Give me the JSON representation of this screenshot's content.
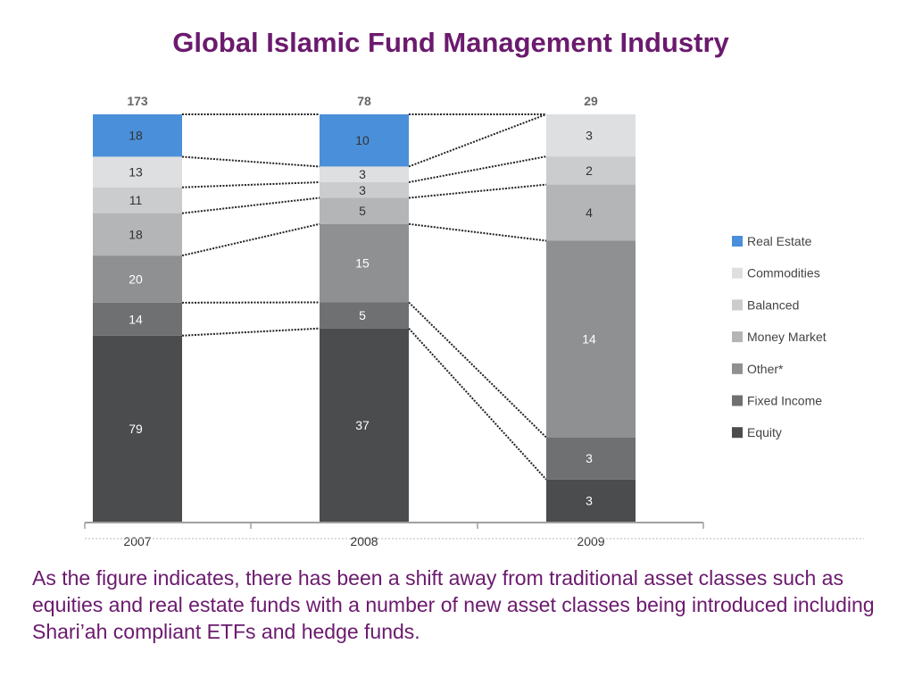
{
  "slide": {
    "title": "Global Islamic Fund Management Industry",
    "caption": "As the figure indicates, there has been a shift away from traditional asset classes such as equities and real estate funds with a number of new asset classes being introduced including Shari’ah compliant ETFs and hedge funds."
  },
  "chart_data": {
    "type": "bar",
    "stacked": true,
    "categories": [
      "2007",
      "2008",
      "2009"
    ],
    "totals": [
      "173",
      "78",
      "29"
    ],
    "series": [
      {
        "name": "Real Estate",
        "values": [
          18,
          10,
          0
        ],
        "color": "#4a8fd9"
      },
      {
        "name": "Commodities",
        "values": [
          13,
          3,
          3
        ],
        "color": "#dedfe0"
      },
      {
        "name": "Balanced",
        "values": [
          11,
          3,
          2
        ],
        "color": "#cbcccd"
      },
      {
        "name": "Money Market",
        "values": [
          18,
          5,
          4
        ],
        "color": "#b4b5b7"
      },
      {
        "name": "Other*",
        "values": [
          20,
          15,
          14
        ],
        "color": "#8e9092"
      },
      {
        "name": "Fixed Income",
        "values": [
          14,
          5,
          3
        ],
        "color": "#6f7072"
      },
      {
        "name": "Equity",
        "values": [
          79,
          37,
          3
        ],
        "color": "#4b4c4e"
      }
    ],
    "connectors": "dotted lines between segment boundaries of adjacent bars",
    "legend_position": "right",
    "grid": false
  }
}
